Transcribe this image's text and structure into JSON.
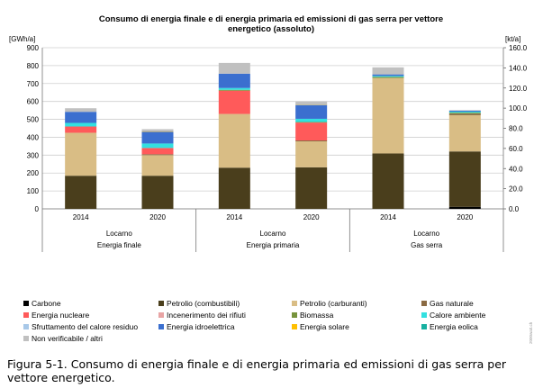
{
  "chart_data": {
    "type": "bar",
    "stacked": true,
    "title": "Consumo di energia finale e di energia primaria ed emissioni di gas serra per vettore energetico (assoluto)",
    "title_lines": [
      "Consumo di energia finale e di energia primaria ed emissioni di gas serra per vettore",
      "energetico (assoluto)"
    ],
    "y_left_unit": "[GWh/a]",
    "y_right_unit": "[kt/a]",
    "ylim_left": [
      0,
      900
    ],
    "ylim_right": [
      0,
      160
    ],
    "y_left_ticks": [
      "0",
      "100",
      "200",
      "300",
      "400",
      "500",
      "600",
      "700",
      "800",
      "900"
    ],
    "y_right_ticks": [
      "0.0",
      "20.0",
      "40.0",
      "60.0",
      "80.0",
      "100.0",
      "120.0",
      "140.0",
      "160.0"
    ],
    "categories": [
      "2014",
      "2020",
      "2014",
      "2020",
      "2014",
      "2020"
    ],
    "group_labels": [
      {
        "place": "Locarno",
        "group": "Energia finale",
        "axis": "left"
      },
      {
        "place": "Locarno",
        "group": "Energia primaria",
        "axis": "left"
      },
      {
        "place": "Locarno",
        "group": "Gas serra",
        "axis": "right"
      }
    ],
    "grid": true,
    "series": [
      {
        "name": "Carbone",
        "color": "#000000",
        "values": [
          0,
          0,
          0,
          0,
          0,
          2
        ]
      },
      {
        "name": "Petrolio (combustibili)",
        "color": "#4a3e1c",
        "values": [
          185,
          185,
          230,
          232,
          55,
          55
        ]
      },
      {
        "name": "Petrolio (carburanti)",
        "color": "#d9bd85",
        "values": [
          240,
          115,
          300,
          145,
          75,
          36
        ]
      },
      {
        "name": "Gas naturale",
        "color": "#8a6a43",
        "values": [
          0,
          5,
          0,
          5,
          0,
          1.5
        ]
      },
      {
        "name": "Energia nucleare",
        "color": "#ff5a5a",
        "values": [
          35,
          35,
          130,
          100,
          0,
          0
        ]
      },
      {
        "name": "Incenerimento dei rifiuti",
        "color": "#e8a4a4",
        "values": [
          0,
          0,
          0,
          0,
          0,
          0
        ]
      },
      {
        "name": "Biomassa",
        "color": "#77933c",
        "values": [
          0,
          0,
          5,
          3,
          1,
          1
        ]
      },
      {
        "name": "Calore ambiente",
        "color": "#33e0e0",
        "values": [
          20,
          25,
          10,
          18,
          1,
          1
        ]
      },
      {
        "name": "Sfruttamento del calore residuo",
        "color": "#a8c8e8",
        "values": [
          0,
          0,
          0,
          0,
          0,
          0
        ]
      },
      {
        "name": "Energia idroelettrica",
        "color": "#3b6fcf",
        "values": [
          62,
          65,
          80,
          77,
          1.5,
          1
        ]
      },
      {
        "name": "Energia solare",
        "color": "#ffc000",
        "values": [
          0,
          2,
          0,
          2,
          0,
          0
        ]
      },
      {
        "name": "Energia eolica",
        "color": "#17b0a0",
        "values": [
          0,
          0,
          0,
          0,
          0,
          0
        ]
      },
      {
        "name": "Non verificabile / altri",
        "color": "#c0c0c0",
        "values": [
          20,
          13,
          60,
          18,
          7,
          0.5
        ]
      }
    ],
    "legend_position": "bottom"
  },
  "caption": "Figura 5-1. Consumo di energia finale e di energia primaria ed emissioni di gas serra per vettore energetico.",
  "credit": "2000watt.ch"
}
